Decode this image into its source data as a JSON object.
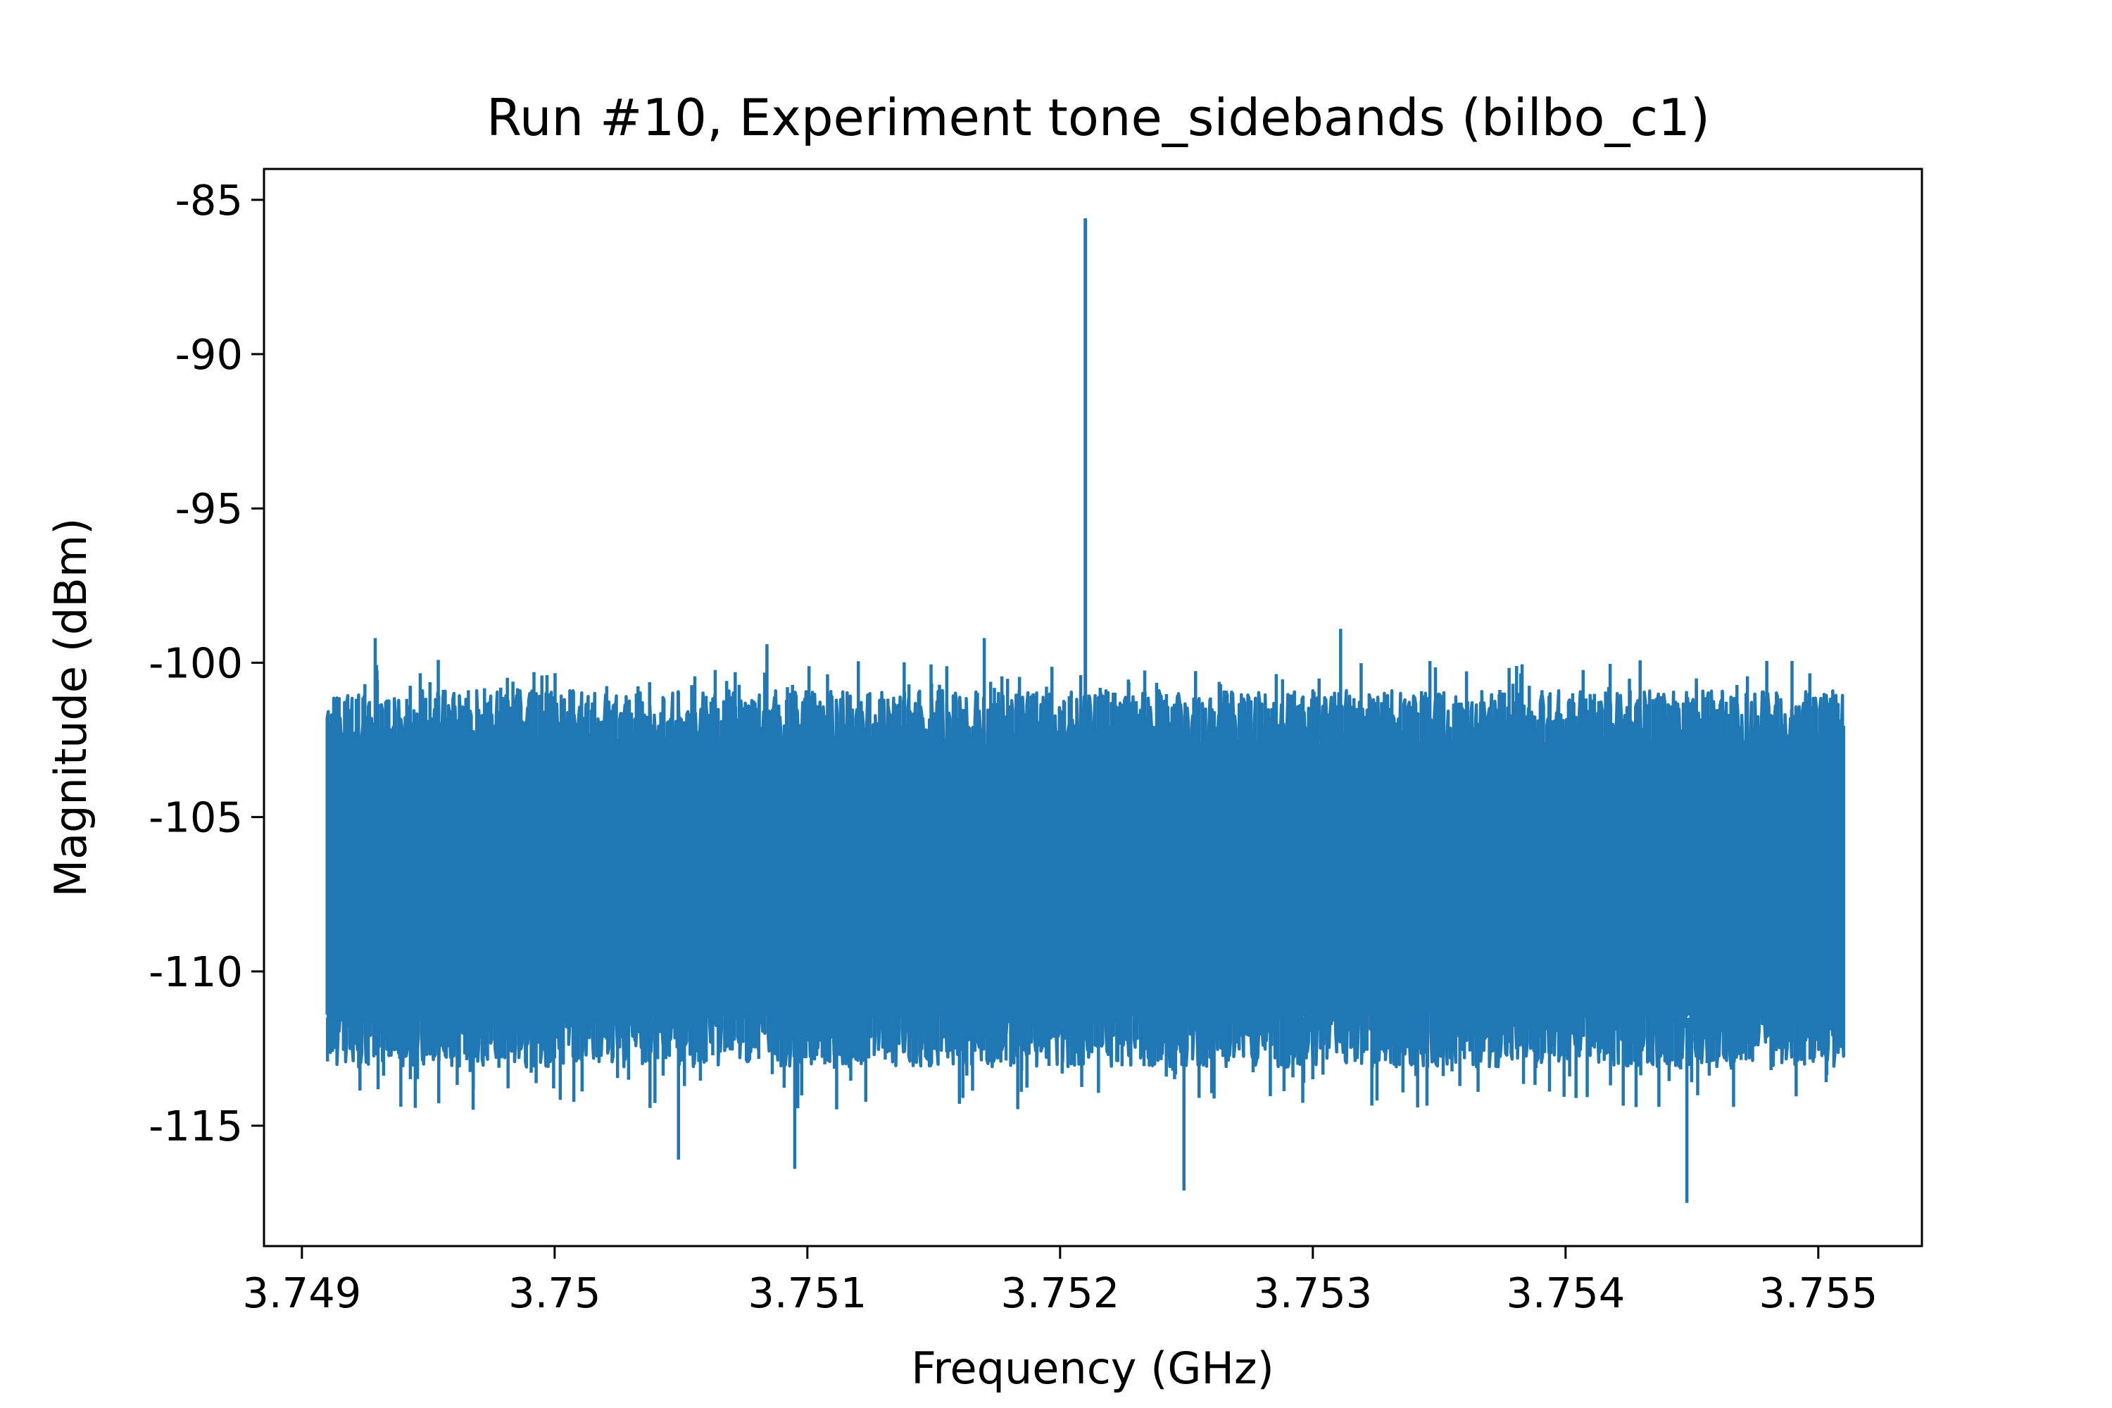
{
  "chart_data": {
    "type": "line",
    "title": "Run #10, Experiment tone_sidebands (bilbo_c1)",
    "xlabel": "Frequency (GHz)",
    "ylabel": "Magnitude (dBm)",
    "xlim": [
      3.74885,
      3.75541
    ],
    "ylim": [
      -118.9,
      -84.0
    ],
    "x_ticks": [
      3.749,
      3.75,
      3.751,
      3.752,
      3.753,
      3.754,
      3.755
    ],
    "x_tick_labels": [
      "3.749",
      "3.75",
      "3.751",
      "3.752",
      "3.753",
      "3.754",
      "3.755"
    ],
    "y_ticks": [
      -85,
      -90,
      -95,
      -100,
      -105,
      -110,
      -115
    ],
    "y_tick_labels": [
      "-85",
      "-90",
      "-95",
      "-100",
      "-105",
      "-110",
      "-115"
    ],
    "grid": false,
    "legend": "none",
    "series": [
      {
        "color": "#1f77b4",
        "x": [
          3.7491,
          3.7495,
          3.75,
          3.7505,
          3.751,
          3.7515,
          3.752,
          3.75209,
          3.7521,
          3.75211,
          3.7525,
          3.753,
          3.7535,
          3.754,
          3.7545,
          3.7551
        ],
        "y": [
          -107,
          -107,
          -107,
          -107,
          -107,
          -107,
          -107,
          -98.5,
          -85.6,
          -98.5,
          -107,
          -107,
          -107,
          -107,
          -107,
          -107
        ],
        "noise_floor_band": [
          -112.5,
          -101.5
        ],
        "peak": {
          "x": 3.7521,
          "y": -85.6
        },
        "spikes_up": [
          {
            "x": 3.74929,
            "y": -99.2
          },
          {
            "x": 3.75084,
            "y": -99.4
          },
          {
            "x": 3.7517,
            "y": -99.2
          },
          {
            "x": 3.75311,
            "y": -98.9
          }
        ],
        "spikes_down": [
          {
            "x": 3.75049,
            "y": -116.1
          },
          {
            "x": 3.75095,
            "y": -116.4
          },
          {
            "x": 3.75249,
            "y": -117.1
          },
          {
            "x": 3.75448,
            "y": -117.5
          }
        ]
      }
    ]
  }
}
